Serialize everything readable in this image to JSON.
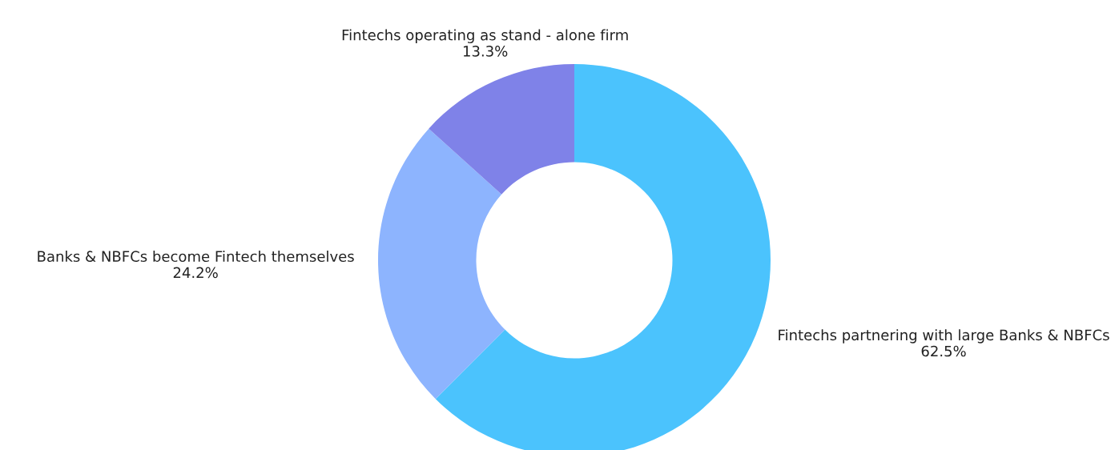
{
  "chart_data": {
    "type": "donut",
    "categories": [
      "Fintechs partnering with large Banks & NBFCs",
      "Banks & NBFCs become Fintech themselves",
      "Fintechs operating as stand - alone firm"
    ],
    "values": [
      62.5,
      24.2,
      13.3
    ],
    "colors": [
      "#4bc3fd",
      "#8db4fe",
      "#7f82e8"
    ],
    "value_labels": [
      "62.5%",
      "24.2%",
      "13.3%"
    ],
    "legend": false
  }
}
